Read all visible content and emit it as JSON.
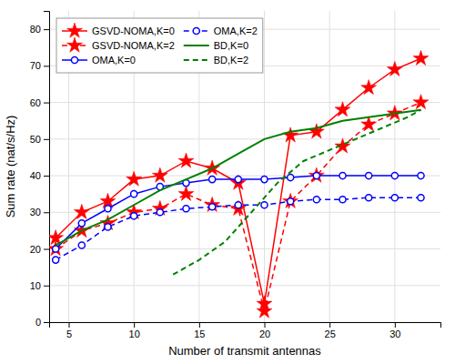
{
  "chart_data": {
    "type": "line",
    "xlabel": "Number of transmit antennas",
    "ylabel": "Sum rate (nat/s/Hz)",
    "xlim": [
      3.5,
      33.5
    ],
    "ylim": [
      0,
      85
    ],
    "xticks": [
      5,
      10,
      15,
      20,
      25,
      30
    ],
    "yticks": [
      0,
      10,
      20,
      30,
      40,
      50,
      60,
      70,
      80
    ],
    "grid": true,
    "legend": "upper left",
    "series": [
      {
        "name": "GSVD-NOMA,K=0",
        "color": "#FF0000",
        "line_style": "solid",
        "marker": "star",
        "x": [
          4,
          6,
          8,
          10,
          12,
          14,
          16,
          18,
          20,
          22,
          24,
          26,
          28,
          30,
          32
        ],
        "values": [
          23,
          30,
          33,
          39,
          40,
          44,
          42,
          38,
          5,
          51,
          52,
          58,
          64,
          69,
          72
        ]
      },
      {
        "name": "GSVD-NOMA,K=2",
        "color": "#FF0000",
        "line_style": "dashed",
        "marker": "star",
        "x": [
          4,
          6,
          8,
          10,
          12,
          14,
          16,
          18,
          20,
          22,
          24,
          26,
          28,
          30,
          32
        ],
        "values": [
          20,
          25,
          27,
          30,
          31,
          35,
          32,
          31,
          3,
          33,
          40,
          48,
          54,
          57,
          60
        ]
      },
      {
        "name": "OMA,K=0",
        "color": "#0000FF",
        "line_style": "solid",
        "marker": "circle",
        "x": [
          4,
          6,
          8,
          10,
          12,
          14,
          16,
          18,
          20,
          22,
          24,
          26,
          28,
          30,
          32
        ],
        "values": [
          20,
          27,
          31,
          35,
          37,
          38,
          39,
          39,
          39,
          39.5,
          40,
          40,
          40,
          40,
          40
        ]
      },
      {
        "name": "OMA,K=2",
        "color": "#0000FF",
        "line_style": "dashed",
        "marker": "circle",
        "x": [
          4,
          6,
          8,
          10,
          12,
          14,
          16,
          18,
          20,
          22,
          24,
          26,
          28,
          30,
          32
        ],
        "values": [
          17,
          21,
          26,
          29,
          30,
          31,
          31.5,
          32,
          32,
          33,
          33.5,
          33.5,
          34,
          34,
          34
        ]
      },
      {
        "name": "BD,K=0",
        "color": "#008000",
        "line_style": "solid",
        "marker": "none",
        "x": [
          4,
          6,
          8,
          10,
          12,
          14,
          16,
          18,
          20,
          22,
          24,
          26,
          28,
          30,
          32
        ],
        "values": [
          21,
          25,
          28,
          32,
          36,
          39,
          42,
          46,
          50,
          52,
          53,
          55,
          56,
          57,
          58
        ]
      },
      {
        "name": "BD,K=2",
        "color": "#008000",
        "line_style": "dashed",
        "marker": "none",
        "x": [
          13,
          15,
          17,
          19,
          21,
          23,
          25,
          27,
          29,
          31,
          32
        ],
        "values": [
          13,
          17,
          22,
          30,
          38,
          44,
          47,
          50,
          53,
          56,
          58
        ]
      }
    ]
  }
}
